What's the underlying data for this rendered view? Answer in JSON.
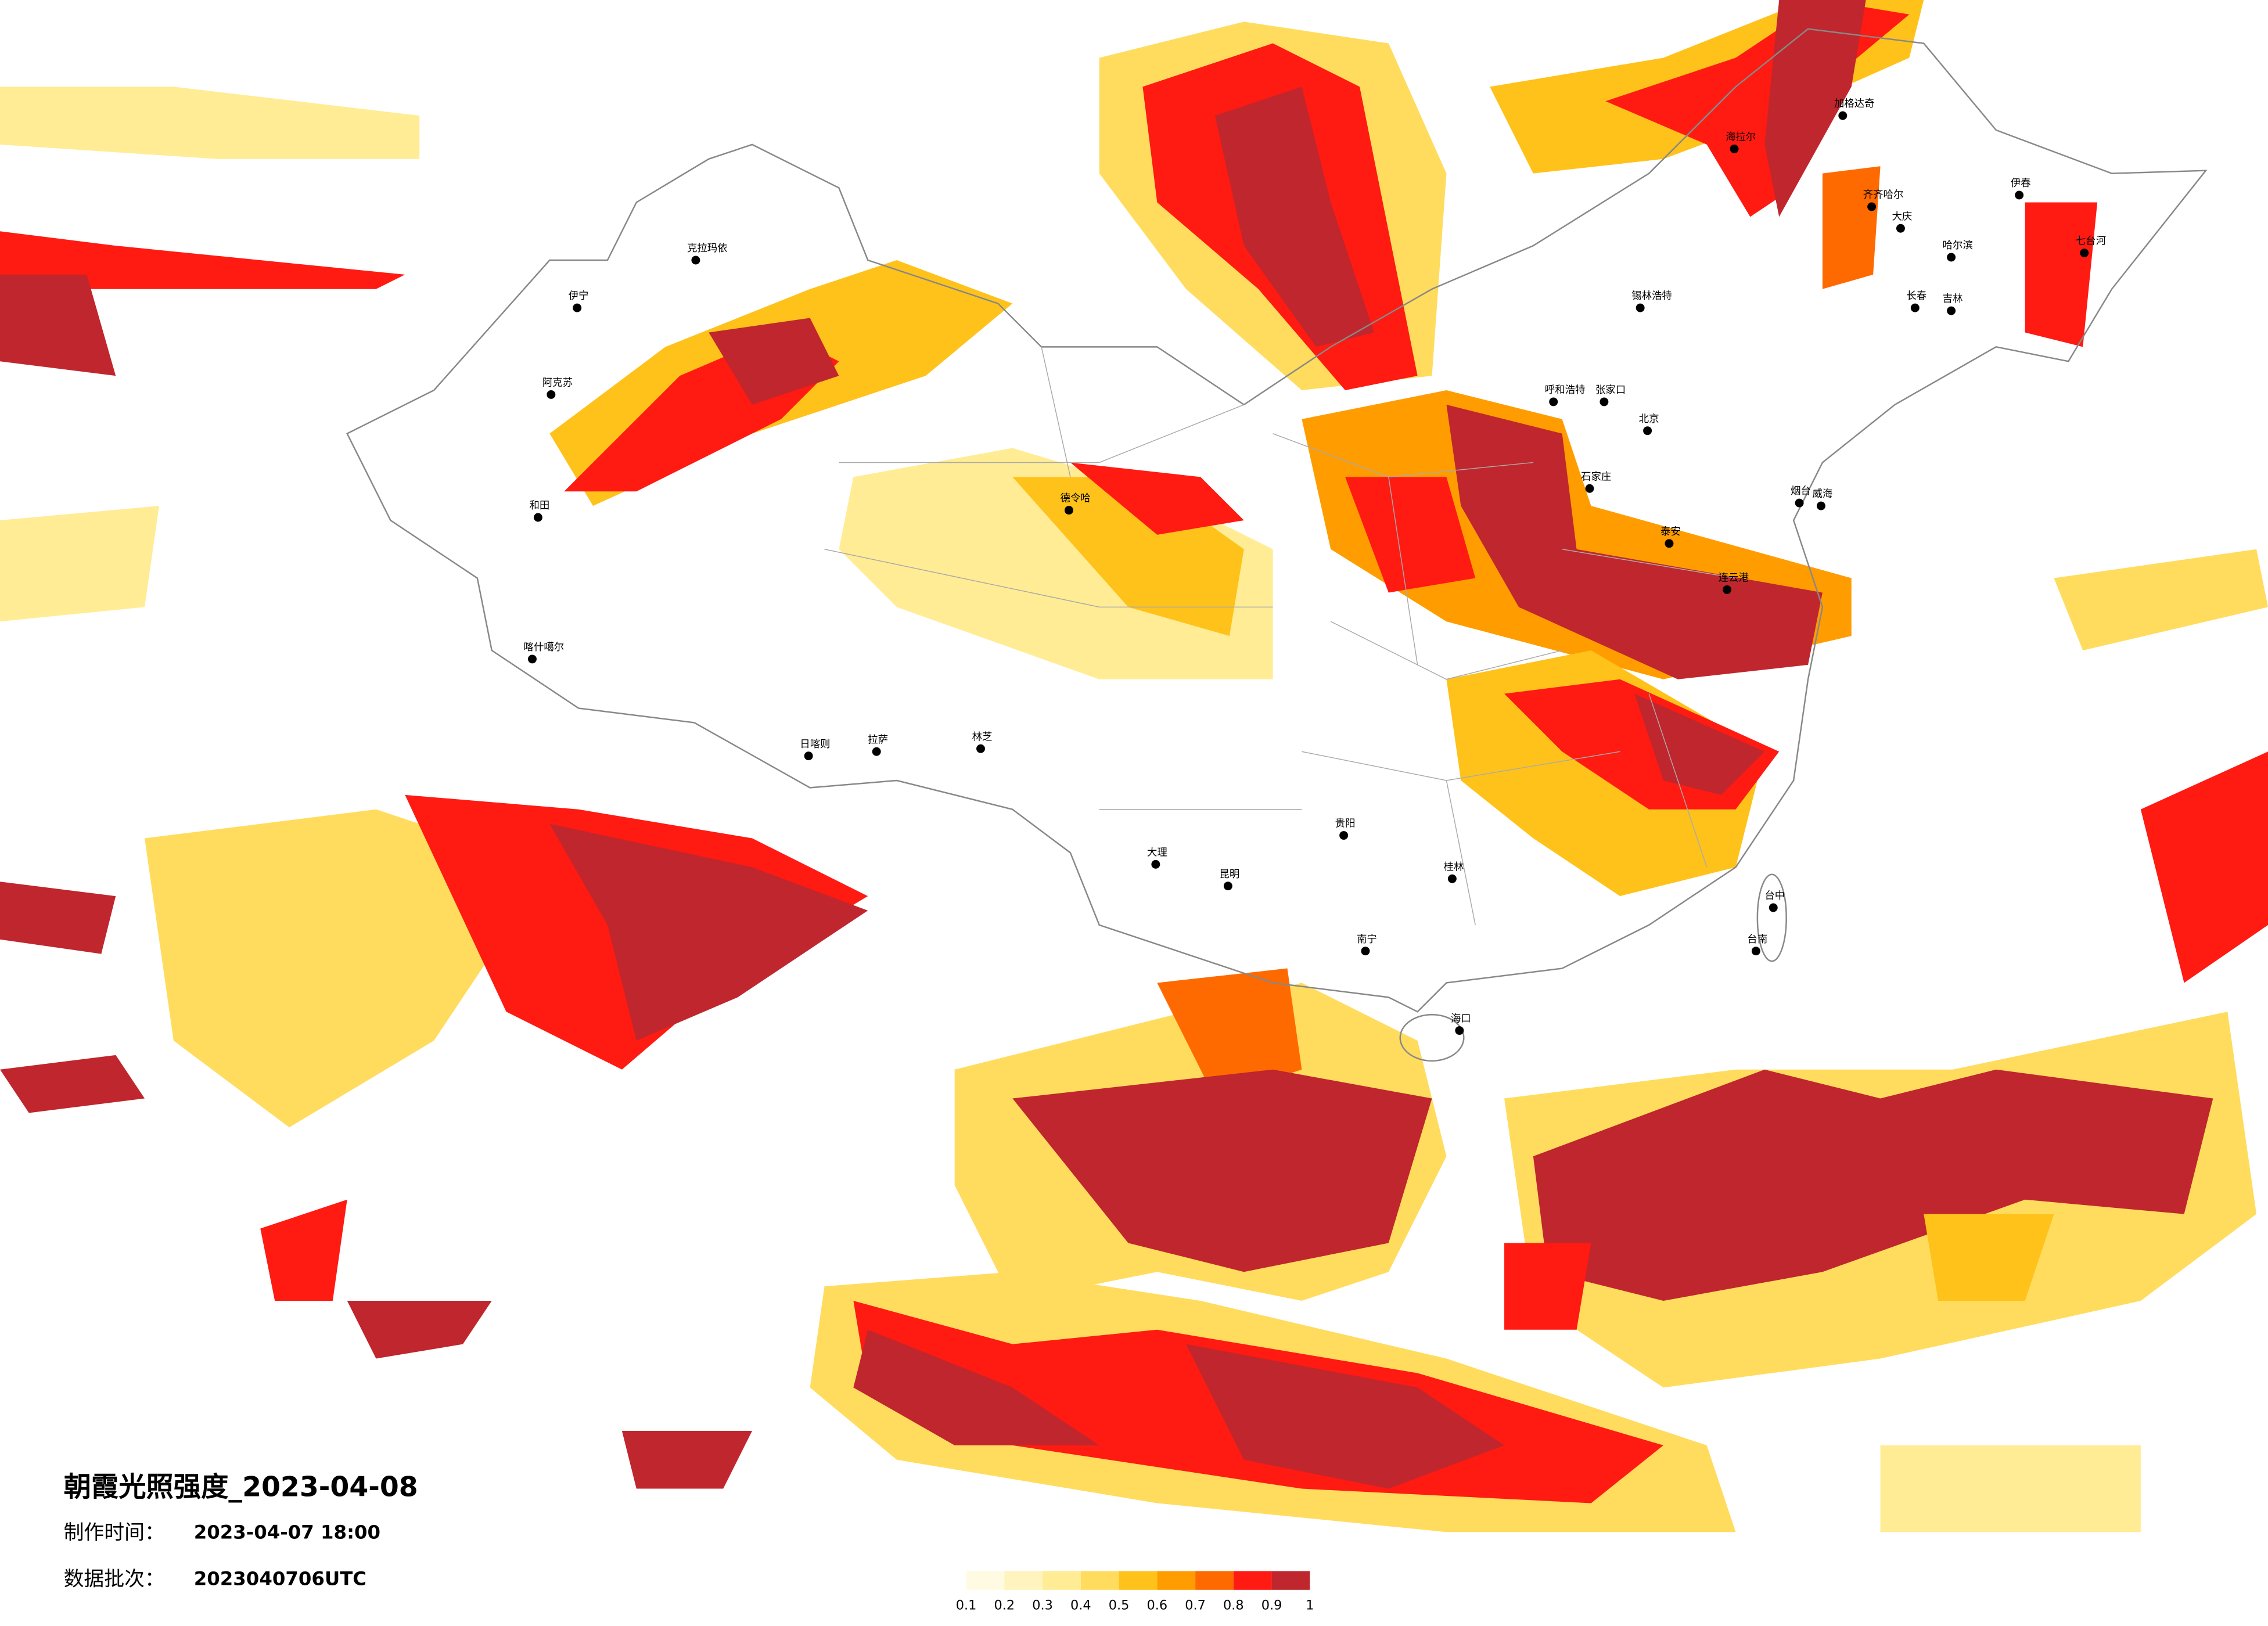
{
  "title": "朝霞光照强度_2023-04-08",
  "production_time": {
    "label": "制作时间：",
    "value": "2023-04-07 18:00"
  },
  "batch": {
    "label": "数据批次：",
    "value": "2023040706UTC"
  },
  "legend": {
    "colors": [
      "#fffbe3",
      "#fff4bd",
      "#ffec94",
      "#ffdc5e",
      "#ffc21a",
      "#ff9d00",
      "#ff6a00",
      "#ff1a12",
      "#c0262d"
    ],
    "ticks": [
      0.1,
      0.2,
      0.3,
      0.4,
      0.5,
      0.6,
      0.7,
      0.8,
      0.9,
      1
    ]
  },
  "cities": [
    "克拉玛依",
    "伊宁",
    "阿克苏",
    "和田",
    "喀什噶尔",
    "日喀则",
    "拉萨",
    "林芝",
    "德令哈",
    "呼和浩特",
    "北京",
    "石家庄",
    "张家口",
    "泰安",
    "烟台",
    "威海",
    "连云港",
    "海拉尔",
    "加格达奇",
    "齐齐哈尔",
    "大庆",
    "哈尔滨",
    "长春",
    "吉林",
    "锡林浩特",
    "伊春",
    "七台河",
    "南宁",
    "海口",
    "桂林",
    "贵阳",
    "昆明",
    "大理",
    "台中",
    "台南"
  ]
}
